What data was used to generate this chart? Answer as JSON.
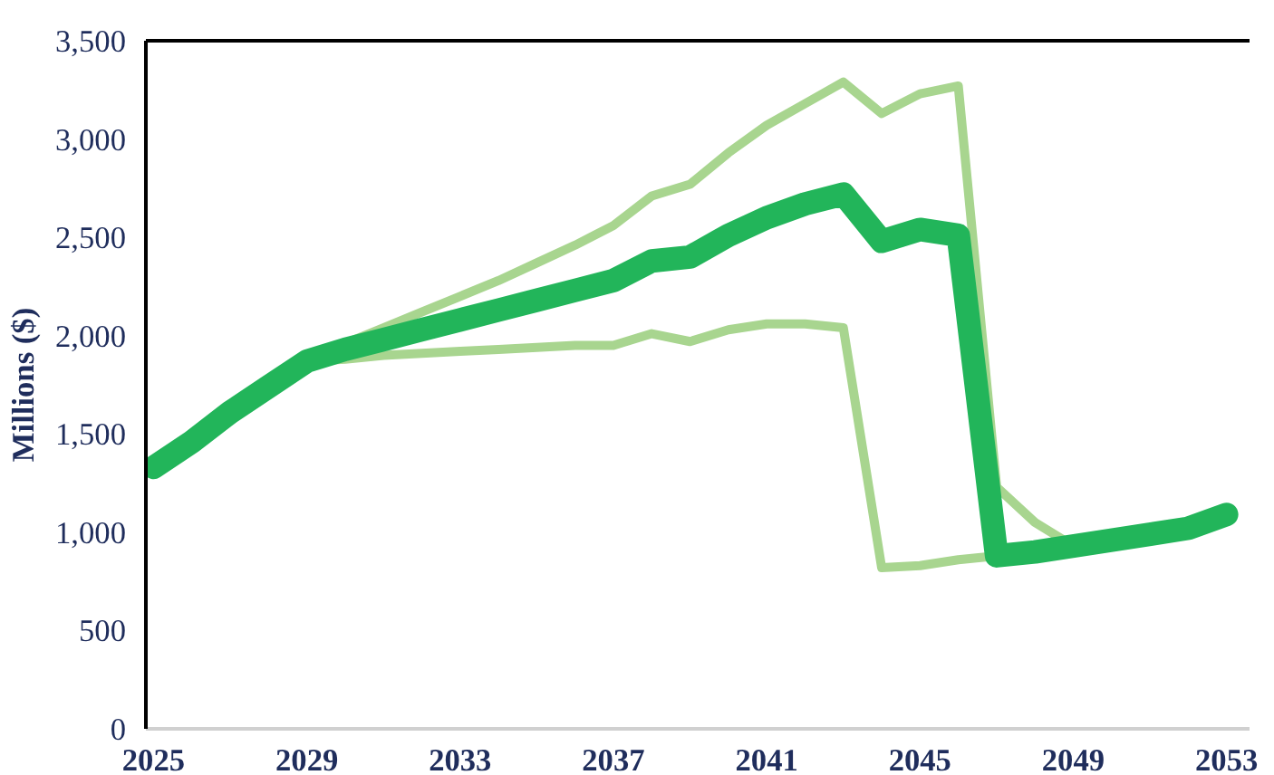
{
  "chart_data": {
    "type": "line",
    "ylabel": "Millions ($)",
    "xlim": [
      2024.8,
      2053.6
    ],
    "xticks": [
      2025,
      2029,
      2033,
      2037,
      2041,
      2045,
      2049,
      2053
    ],
    "ylim": [
      0,
      3500
    ],
    "yticks": [
      {
        "value": 0,
        "label": "0"
      },
      {
        "value": 500,
        "label": "500"
      },
      {
        "value": 1000,
        "label": "1,000"
      },
      {
        "value": 1500,
        "label": "1,500"
      },
      {
        "value": 2000,
        "label": "2,000"
      },
      {
        "value": 2500,
        "label": "2,500"
      },
      {
        "value": 3000,
        "label": "3,000"
      },
      {
        "value": 3500,
        "label": "3,500"
      }
    ],
    "line_style": "solid",
    "series": [
      {
        "color": "#a8d58f",
        "x": [
          2029,
          2030,
          2031,
          2032,
          2033,
          2034,
          2035,
          2036,
          2037,
          2038,
          2039,
          2040,
          2041,
          2042,
          2043,
          2044,
          2045,
          2046,
          2047,
          2048,
          2049
        ],
        "values": [
          1870,
          1960,
          2040,
          2120,
          2200,
          2280,
          2370,
          2460,
          2560,
          2710,
          2770,
          2930,
          3070,
          3180,
          3290,
          3130,
          3230,
          3270,
          1230,
          1050,
          930
        ]
      },
      {
        "color": "#a8d58f",
        "x": [
          2029,
          2030,
          2031,
          2032,
          2033,
          2034,
          2035,
          2036,
          2037,
          2038,
          2039,
          2040,
          2041,
          2042,
          2043,
          2044,
          2045,
          2046,
          2047
        ],
        "values": [
          1870,
          1880,
          1900,
          1910,
          1920,
          1930,
          1940,
          1950,
          1950,
          2010,
          1970,
          2030,
          2060,
          2060,
          2040,
          820,
          830,
          860,
          880
        ]
      },
      {
        "color": "#22b55a",
        "x": [
          2025,
          2026,
          2027,
          2028,
          2029,
          2030,
          2031,
          2032,
          2033,
          2034,
          2035,
          2036,
          2037,
          2038,
          2039,
          2040,
          2041,
          2042,
          2043,
          2044,
          2045,
          2046,
          2047,
          2048,
          2049,
          2050,
          2051,
          2052,
          2053
        ],
        "values": [
          1330,
          1460,
          1610,
          1740,
          1870,
          1930,
          1980,
          2030,
          2080,
          2130,
          2180,
          2230,
          2280,
          2380,
          2400,
          2510,
          2600,
          2670,
          2720,
          2480,
          2540,
          2510,
          880,
          900,
          930,
          960,
          990,
          1020,
          1090
        ]
      }
    ]
  }
}
